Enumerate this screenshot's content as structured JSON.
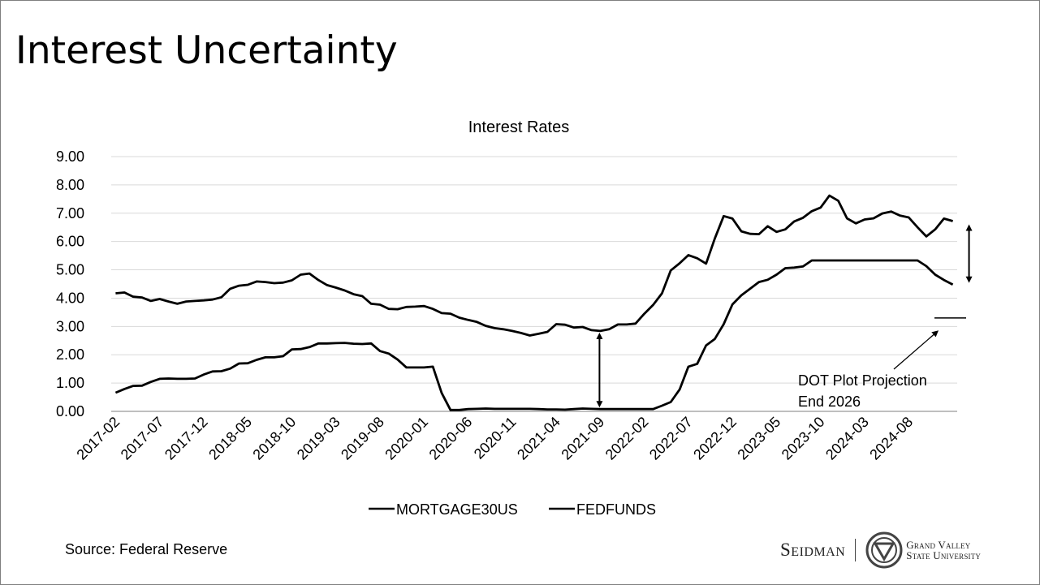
{
  "slide": {
    "title": "Interest Uncertainty",
    "source": "Source: Federal Reserve"
  },
  "logo": {
    "left_word": "Seidman",
    "right_line1": "Grand Valley",
    "right_line2": "State University"
  },
  "annotation": {
    "line1": "DOT Plot Projection",
    "line2": "End 2026",
    "projection_value": 3.3
  },
  "colors": {
    "line": "#000000",
    "grid": "#d9d9d9",
    "axis": "#7f7f7f"
  },
  "chart_data": {
    "type": "line",
    "title": "Interest Rates",
    "ylim": [
      0,
      9
    ],
    "yticks": [
      "0.00",
      "1.00",
      "2.00",
      "3.00",
      "4.00",
      "5.00",
      "6.00",
      "7.00",
      "8.00",
      "9.00"
    ],
    "x_start": "2017-02",
    "xtick_labels": [
      "2017-02",
      "2017-07",
      "2017-12",
      "2018-05",
      "2018-10",
      "2019-03",
      "2019-08",
      "2020-01",
      "2020-06",
      "2020-11",
      "2021-04",
      "2021-09",
      "2022-02",
      "2022-07",
      "2022-12",
      "2023-05",
      "2023-10",
      "2024-03",
      "2024-08"
    ],
    "grid": "horizontal",
    "legend": "bottom",
    "series": [
      {
        "name": "MORTGAGE30US",
        "values": [
          4.17,
          4.2,
          4.05,
          4.02,
          3.9,
          3.97,
          3.88,
          3.8,
          3.88,
          3.9,
          3.92,
          3.95,
          4.03,
          4.33,
          4.44,
          4.47,
          4.59,
          4.57,
          4.53,
          4.55,
          4.63,
          4.83,
          4.87,
          4.64,
          4.46,
          4.37,
          4.27,
          4.14,
          4.07,
          3.8,
          3.77,
          3.62,
          3.61,
          3.69,
          3.7,
          3.72,
          3.62,
          3.47,
          3.45,
          3.31,
          3.23,
          3.16,
          3.02,
          2.94,
          2.9,
          2.84,
          2.77,
          2.68,
          2.74,
          2.81,
          3.08,
          3.06,
          2.96,
          2.98,
          2.87,
          2.84,
          2.9,
          3.07,
          3.07,
          3.1,
          3.45,
          3.76,
          4.17,
          4.98,
          5.23,
          5.52,
          5.41,
          5.22,
          6.11,
          6.9,
          6.81,
          6.36,
          6.27,
          6.26,
          6.54,
          6.34,
          6.43,
          6.71,
          6.84,
          7.07,
          7.2,
          7.62,
          7.44,
          6.82,
          6.64,
          6.78,
          6.82,
          6.99,
          7.06,
          6.92,
          6.85,
          6.5,
          6.18,
          6.43,
          6.81,
          6.72
        ]
      },
      {
        "name": "FEDFUNDS",
        "values": [
          0.66,
          0.79,
          0.9,
          0.91,
          1.04,
          1.15,
          1.16,
          1.15,
          1.15,
          1.16,
          1.3,
          1.41,
          1.42,
          1.51,
          1.69,
          1.7,
          1.82,
          1.91,
          1.91,
          1.95,
          2.19,
          2.2,
          2.27,
          2.4,
          2.4,
          2.41,
          2.42,
          2.39,
          2.38,
          2.4,
          2.13,
          2.04,
          1.83,
          1.55,
          1.55,
          1.55,
          1.58,
          0.65,
          0.05,
          0.05,
          0.08,
          0.09,
          0.1,
          0.09,
          0.09,
          0.09,
          0.09,
          0.09,
          0.08,
          0.07,
          0.07,
          0.06,
          0.08,
          0.1,
          0.09,
          0.08,
          0.08,
          0.08,
          0.08,
          0.08,
          0.08,
          0.08,
          0.2,
          0.33,
          0.77,
          1.58,
          1.68,
          2.33,
          2.56,
          3.08,
          3.78,
          4.1,
          4.33,
          4.57,
          4.65,
          4.83,
          5.06,
          5.08,
          5.12,
          5.33,
          5.33,
          5.33,
          5.33,
          5.33,
          5.33,
          5.33,
          5.33,
          5.33,
          5.33,
          5.33,
          5.33,
          5.33,
          5.13,
          4.83,
          4.64,
          4.48
        ]
      }
    ]
  }
}
